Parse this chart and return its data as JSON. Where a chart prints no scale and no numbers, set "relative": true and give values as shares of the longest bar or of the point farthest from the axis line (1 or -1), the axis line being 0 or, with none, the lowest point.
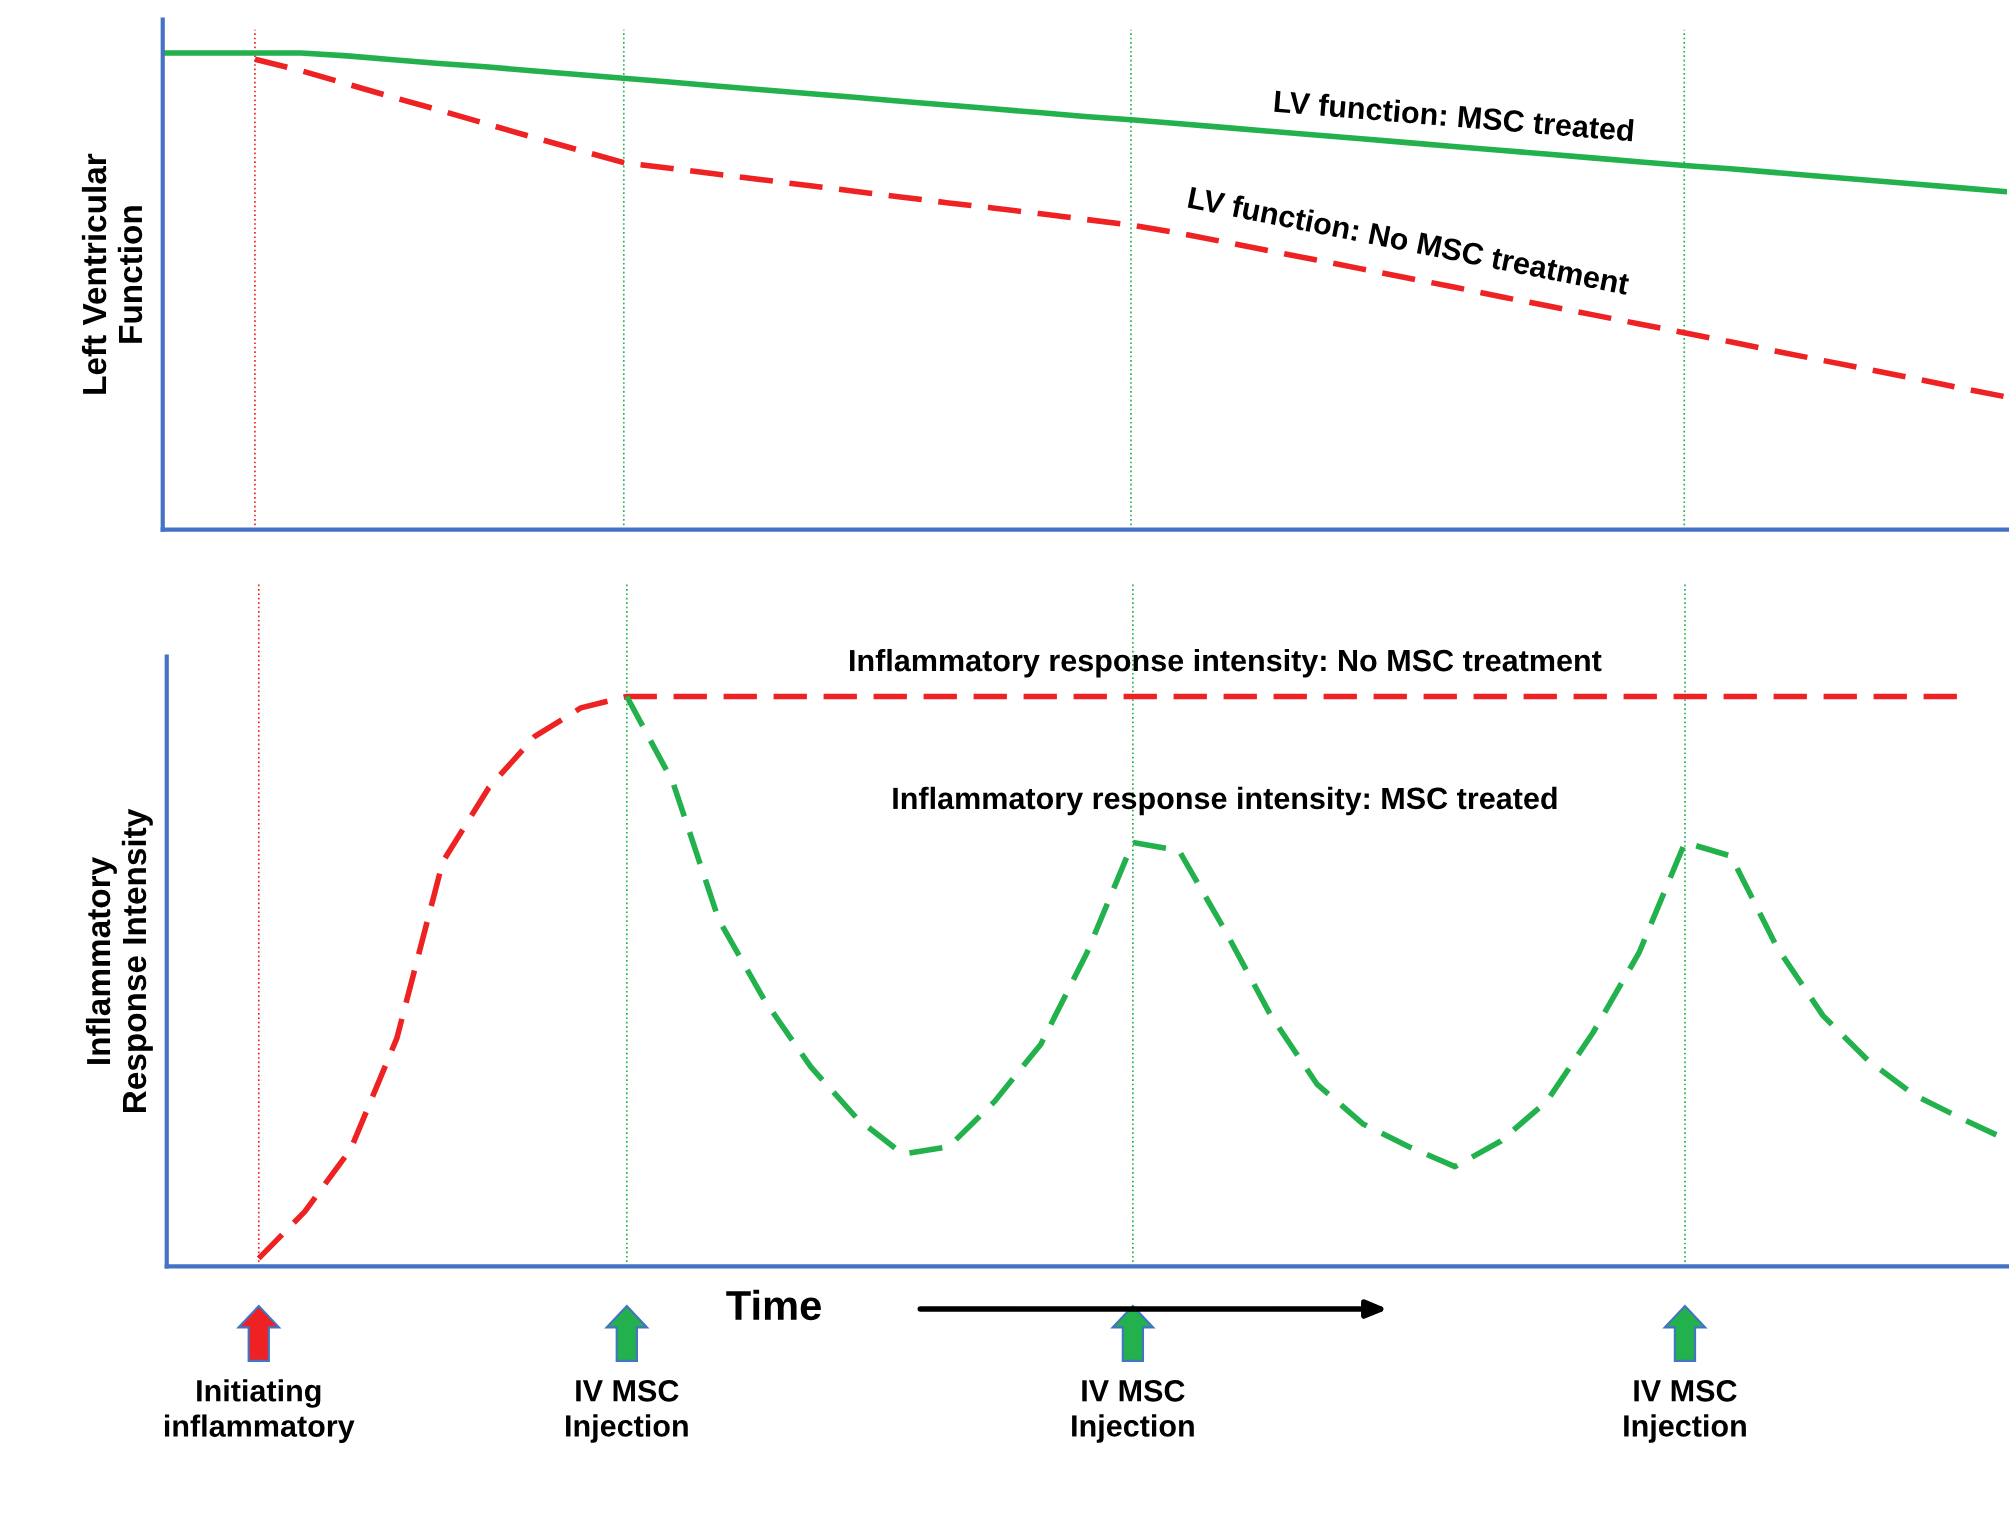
{
  "chart_data": [
    {
      "type": "line",
      "relative": true,
      "grid": "x",
      "ylabel": "Left Ventricular\nFunction",
      "categories": [
        null,
        null,
        null,
        null,
        null,
        null,
        null,
        null,
        null,
        null,
        null,
        null,
        null,
        null,
        null,
        null,
        null,
        null,
        null,
        null,
        null,
        null,
        null,
        null,
        null,
        null,
        null,
        null,
        null,
        null,
        null,
        null,
        null,
        null,
        null,
        null,
        null,
        null,
        null,
        null,
        null
      ],
      "series": [
        {
          "name": "LV function: MSC treated",
          "color": "#22b14c",
          "line_style": "solid",
          "values": [
            1.0,
            1.0,
            1.0,
            1.0,
            0.994,
            0.986,
            0.978,
            0.971,
            0.963,
            0.955,
            0.947,
            0.939,
            0.931,
            0.923,
            0.915,
            0.907,
            0.899,
            0.891,
            0.883,
            0.875,
            0.867,
            0.86,
            0.852,
            0.844,
            0.836,
            0.828,
            0.82,
            0.812,
            0.804,
            0.796,
            0.788,
            0.78,
            0.772,
            0.764,
            0.757,
            0.749,
            0.741,
            0.733,
            0.725,
            0.717,
            0.709
          ]
        },
        {
          "name": "LV function: No MSC treatment",
          "color": "#ee2222",
          "line_style": "dashed",
          "values": [
            null,
            null,
            0.987,
            0.963,
            0.935,
            0.907,
            0.88,
            0.852,
            0.824,
            0.797,
            0.77,
            0.758,
            0.746,
            0.734,
            0.722,
            0.71,
            0.698,
            0.686,
            0.675,
            0.663,
            0.651,
            0.639,
            0.623,
            0.604,
            0.585,
            0.566,
            0.547,
            0.528,
            0.509,
            0.489,
            0.47,
            0.451,
            0.432,
            0.413,
            0.394,
            0.374,
            0.355,
            0.336,
            0.317,
            0.297,
            0.278
          ]
        }
      ]
    },
    {
      "type": "line",
      "relative": true,
      "grid": "x",
      "ylabel": "Inflammatory\nResponse Intensity",
      "xlabel": "Time",
      "categories": [
        null,
        null,
        null,
        null,
        null,
        null,
        null,
        null,
        null,
        null,
        null,
        null,
        null,
        null,
        null,
        null,
        null,
        null,
        null,
        null,
        null,
        null,
        null,
        null,
        null,
        null,
        null,
        null,
        null,
        null,
        null,
        null,
        null,
        null,
        null,
        null,
        null,
        null,
        null,
        null,
        null
      ],
      "series": [
        {
          "name": "Inflammatory response intensity: No MSC treatment",
          "color": "#ee2222",
          "line_style": "dashed",
          "values": [
            null,
            null,
            0.014,
            0.096,
            0.206,
            0.4,
            0.71,
            0.84,
            0.93,
            0.98,
            1.0,
            1.0,
            1.0,
            1.0,
            1.0,
            1.0,
            1.0,
            1.0,
            1.0,
            1.0,
            1.0,
            1.0,
            1.0,
            1.0,
            1.0,
            1.0,
            1.0,
            1.0,
            1.0,
            1.0,
            1.0,
            1.0,
            1.0,
            1.0,
            1.0,
            1.0,
            1.0,
            1.0,
            1.0,
            1.0,
            null
          ]
        },
        {
          "name": "Inflammatory response intensity: MSC treated",
          "color": "#22b14c",
          "line_style": "dashed",
          "values": [
            null,
            null,
            null,
            null,
            null,
            null,
            null,
            null,
            null,
            null,
            1.0,
            0.85,
            0.608,
            0.466,
            0.35,
            0.26,
            0.197,
            0.21,
            0.29,
            0.39,
            0.55,
            0.744,
            0.73,
            0.59,
            0.44,
            0.32,
            0.25,
            0.21,
            0.175,
            0.22,
            0.29,
            0.41,
            0.55,
            0.744,
            0.72,
            0.56,
            0.44,
            0.36,
            0.3,
            0.26,
            0.222
          ]
        }
      ],
      "annotations": [
        "Initiating\ninflammatory",
        "IV MSC\nInjection",
        "IV MSC\nInjection",
        "IV MSC\nInjection"
      ]
    }
  ]
}
